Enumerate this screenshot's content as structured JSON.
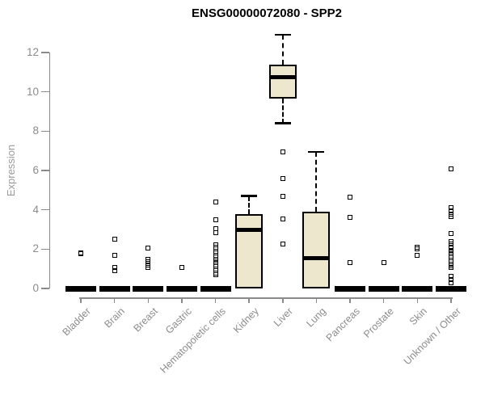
{
  "title": "ENSG00000072080 - SPP2",
  "colors": {
    "background": "#ffffff",
    "box_fill": "#EDE8CD",
    "box_border": "#000000",
    "median": "#000000",
    "axis": "#8a8a8a",
    "tick_text": "#8c8c8c",
    "axis_label_text": "#999999",
    "title_text": "#000000"
  },
  "chart_data": {
    "type": "box",
    "title": "ENSG00000072080 - SPP2",
    "xlabel": "",
    "ylabel": "Expression",
    "ylim": [
      0,
      13
    ],
    "yticks": [
      0,
      2,
      4,
      6,
      8,
      10,
      12
    ],
    "grid": false,
    "legend": "none",
    "categories": [
      "Bladder",
      "Brain",
      "Breast",
      "Gastric",
      "Hematopoietic cells",
      "Kidney",
      "Liver",
      "Lung",
      "Pancreas",
      "Prostate",
      "Skin",
      "Unknown / Other"
    ],
    "series": [
      {
        "category": "Bladder",
        "q1": 0,
        "median": 0,
        "q3": 0,
        "whisker_low": 0,
        "whisker_high": 0,
        "outliers": [
          1.8,
          1.75
        ]
      },
      {
        "category": "Brain",
        "q1": 0,
        "median": 0,
        "q3": 0,
        "whisker_low": 0,
        "whisker_high": 0,
        "outliers": [
          2.5,
          1.7,
          1.05,
          0.9
        ]
      },
      {
        "category": "Breast",
        "q1": 0,
        "median": 0,
        "q3": 0,
        "whisker_low": 0,
        "whisker_high": 0,
        "outliers": [
          2.05,
          1.5,
          1.35,
          1.2,
          1.05
        ]
      },
      {
        "category": "Gastric",
        "q1": 0,
        "median": 0,
        "q3": 0,
        "whisker_low": 0,
        "whisker_high": 0,
        "outliers": [
          1.05
        ]
      },
      {
        "category": "Hematopoietic cells",
        "q1": 0,
        "median": 0,
        "q3": 0,
        "whisker_low": 0,
        "whisker_high": 0,
        "outliers": [
          4.4,
          3.5,
          3.05,
          2.85,
          2.2,
          2.1,
          2.0,
          1.9,
          1.8,
          1.7,
          1.6,
          1.5,
          1.4,
          1.3,
          1.2,
          1.1,
          1.0,
          0.9,
          0.8,
          0.7
        ]
      },
      {
        "category": "Kidney",
        "q1": 0,
        "median": 3.0,
        "q3": 3.78,
        "whisker_low": 0,
        "whisker_high": 4.7,
        "outliers": []
      },
      {
        "category": "Liver",
        "q1": 9.65,
        "median": 10.75,
        "q3": 11.4,
        "whisker_low": 8.4,
        "whisker_high": 12.9,
        "outliers": [
          6.95,
          5.6,
          4.7,
          3.55,
          2.25
        ]
      },
      {
        "category": "Lung",
        "q1": 0,
        "median": 1.55,
        "q3": 3.9,
        "whisker_low": 0,
        "whisker_high": 6.95,
        "outliers": []
      },
      {
        "category": "Pancreas",
        "q1": 0,
        "median": 0,
        "q3": 0,
        "whisker_low": 0,
        "whisker_high": 0,
        "outliers": [
          4.65,
          3.6,
          1.3
        ]
      },
      {
        "category": "Prostate",
        "q1": 0,
        "median": 0,
        "q3": 0,
        "whisker_low": 0,
        "whisker_high": 0,
        "outliers": [
          1.3
        ]
      },
      {
        "category": "Skin",
        "q1": 0,
        "median": 0,
        "q3": 0,
        "whisker_low": 0,
        "whisker_high": 0,
        "outliers": [
          2.1,
          2.0,
          1.7
        ]
      },
      {
        "category": "Unknown / Other",
        "q1": 0,
        "median": 0,
        "q3": 0,
        "whisker_low": 0,
        "whisker_high": 0,
        "outliers": [
          6.1,
          4.1,
          3.95,
          3.8,
          3.65,
          2.8,
          2.4,
          2.25,
          2.1,
          1.95,
          1.85,
          1.75,
          1.65,
          1.55,
          1.45,
          1.35,
          1.25,
          1.15,
          1.05,
          0.6,
          0.45,
          0.3
        ]
      }
    ]
  }
}
